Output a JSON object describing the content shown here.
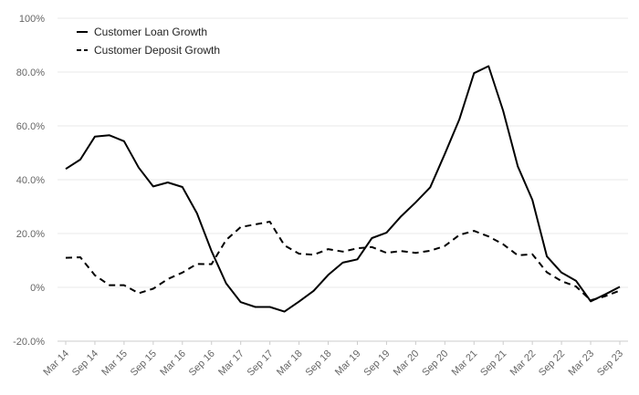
{
  "chart_data": {
    "type": "line",
    "title": "",
    "xlabel": "",
    "ylabel": "",
    "ylim": [
      -20,
      100
    ],
    "grid": true,
    "legend_position": "top-left",
    "y_ticks": [
      "100%",
      "80.0%",
      "60.0%",
      "40.0%",
      "20.0%",
      "0%",
      "-20.0%"
    ],
    "y_tick_values": [
      100,
      80,
      60,
      40,
      20,
      0,
      -20
    ],
    "x_tick_labels": [
      "Mar 14",
      "Sep 14",
      "Mar 15",
      "Sep 15",
      "Mar 16",
      "Sep 16",
      "Mar 17",
      "Sep 17",
      "Mar 18",
      "Sep 18",
      "Mar 19",
      "Sep 19",
      "Mar 20",
      "Sep 20",
      "Mar 21",
      "Sep 21",
      "Mar 22",
      "Sep 22",
      "Mar 23",
      "Sep 23"
    ],
    "x": [
      "Mar 14",
      "Jun 14",
      "Sep 14",
      "Dec 14",
      "Mar 15",
      "Jun 15",
      "Sep 15",
      "Dec 15",
      "Mar 16",
      "Jun 16",
      "Sep 16",
      "Dec 16",
      "Mar 17",
      "Jun 17",
      "Sep 17",
      "Dec 17",
      "Mar 18",
      "Jun 18",
      "Sep 18",
      "Dec 18",
      "Mar 19",
      "Jun 19",
      "Sep 19",
      "Dec 19",
      "Mar 20",
      "Jun 20",
      "Sep 20",
      "Dec 20",
      "Mar 21",
      "Jun 21",
      "Sep 21",
      "Dec 21",
      "Mar 22",
      "Jun 22",
      "Sep 22",
      "Dec 22",
      "Mar 23",
      "Jun 23",
      "Sep 23"
    ],
    "series": [
      {
        "name": "Customer Loan Growth",
        "style": "solid",
        "color": "#000000",
        "values": [
          44,
          47.5,
          56,
          56.5,
          54.3,
          44.5,
          37.5,
          39,
          37.3,
          27.5,
          13.5,
          1.5,
          -5.5,
          -7.3,
          -7.3,
          -9,
          -5.3,
          -1.3,
          4.6,
          9.2,
          10.4,
          18.3,
          20.3,
          26.4,
          31.6,
          37.2,
          49.6,
          62.5,
          79.6,
          82.2,
          65.6,
          45,
          32.5,
          11.5,
          5.5,
          2.4,
          -5.2,
          -2.6,
          0.2
        ]
      },
      {
        "name": "Customer Deposit Growth",
        "style": "dashed",
        "color": "#000000",
        "values": [
          11,
          11.2,
          4.5,
          0.8,
          0.8,
          -2.2,
          -0.5,
          3.1,
          5.5,
          8.7,
          8.6,
          17.6,
          22.4,
          23.4,
          24.4,
          15.6,
          12.5,
          12.1,
          14.2,
          13.3,
          14.5,
          15,
          12.8,
          13.5,
          12.8,
          13.6,
          15.4,
          19.5,
          21,
          18.9,
          16,
          11.9,
          12.3,
          5.6,
          2.3,
          0.3,
          -4.8,
          -3.3,
          -1.2
        ]
      }
    ]
  }
}
